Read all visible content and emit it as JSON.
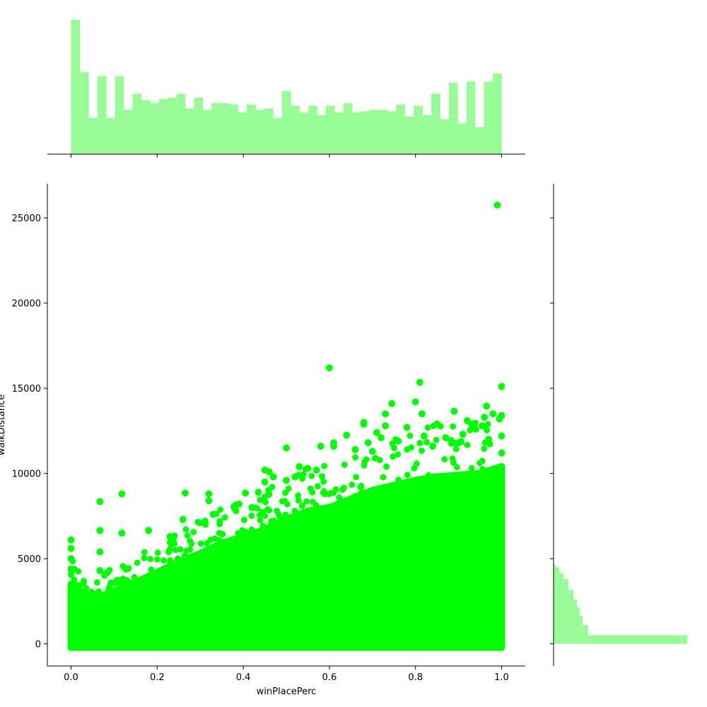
{
  "chart_data": {
    "type": "scatter",
    "title": "",
    "xlabel": "winPlacePerc",
    "ylabel": "walkDistance",
    "xlim": [
      -0.055,
      1.055
    ],
    "ylim": [
      -1300,
      27000
    ],
    "x_ticks": [
      0.0,
      0.2,
      0.4,
      0.6,
      0.8,
      1.0
    ],
    "x_tick_labels": [
      "0.0",
      "0.2",
      "0.4",
      "0.6",
      "0.8",
      "1.0"
    ],
    "y_ticks": [
      0,
      5000,
      10000,
      15000,
      20000,
      25000
    ],
    "y_tick_labels": [
      "0",
      "5000",
      "10000",
      "15000",
      "20000",
      "25000"
    ],
    "point_color": "#00ff00",
    "hist_color": "#98fb98",
    "outlier_points": [
      {
        "x": 0.0,
        "y": 6100
      },
      {
        "x": 0.0,
        "y": 5600
      },
      {
        "x": 0.0,
        "y": 5000
      },
      {
        "x": 0.0,
        "y": 4400
      },
      {
        "x": 0.02,
        "y": 1400
      },
      {
        "x": 0.067,
        "y": 8350
      },
      {
        "x": 0.067,
        "y": 6650
      },
      {
        "x": 0.067,
        "y": 5400
      },
      {
        "x": 0.067,
        "y": 4300
      },
      {
        "x": 0.085,
        "y": 4200
      },
      {
        "x": 0.11,
        "y": 3700
      },
      {
        "x": 0.118,
        "y": 8800
      },
      {
        "x": 0.118,
        "y": 6500
      },
      {
        "x": 0.18,
        "y": 6650
      },
      {
        "x": 0.23,
        "y": 6300
      },
      {
        "x": 0.26,
        "y": 7300
      },
      {
        "x": 0.265,
        "y": 8850
      },
      {
        "x": 0.32,
        "y": 8800
      },
      {
        "x": 0.32,
        "y": 8400
      },
      {
        "x": 0.33,
        "y": 7600
      },
      {
        "x": 0.38,
        "y": 7950
      },
      {
        "x": 0.39,
        "y": 8200
      },
      {
        "x": 0.405,
        "y": 8850
      },
      {
        "x": 0.42,
        "y": 8000
      },
      {
        "x": 0.435,
        "y": 8900
      },
      {
        "x": 0.45,
        "y": 9500
      },
      {
        "x": 0.45,
        "y": 10200
      },
      {
        "x": 0.46,
        "y": 10100
      },
      {
        "x": 0.47,
        "y": 9800
      },
      {
        "x": 0.5,
        "y": 11500
      },
      {
        "x": 0.5,
        "y": 9600
      },
      {
        "x": 0.52,
        "y": 9800
      },
      {
        "x": 0.53,
        "y": 10400
      },
      {
        "x": 0.55,
        "y": 10300
      },
      {
        "x": 0.57,
        "y": 10200
      },
      {
        "x": 0.58,
        "y": 11600
      },
      {
        "x": 0.6,
        "y": 16200
      },
      {
        "x": 0.61,
        "y": 11800
      },
      {
        "x": 0.61,
        "y": 11600
      },
      {
        "x": 0.64,
        "y": 12250
      },
      {
        "x": 0.66,
        "y": 11400
      },
      {
        "x": 0.68,
        "y": 12900
      },
      {
        "x": 0.68,
        "y": 13000
      },
      {
        "x": 0.69,
        "y": 11800
      },
      {
        "x": 0.7,
        "y": 11300
      },
      {
        "x": 0.71,
        "y": 12400
      },
      {
        "x": 0.72,
        "y": 12100
      },
      {
        "x": 0.73,
        "y": 13500
      },
      {
        "x": 0.73,
        "y": 12800
      },
      {
        "x": 0.745,
        "y": 14100
      },
      {
        "x": 0.76,
        "y": 11900
      },
      {
        "x": 0.78,
        "y": 12700
      },
      {
        "x": 0.8,
        "y": 14200
      },
      {
        "x": 0.81,
        "y": 15350
      },
      {
        "x": 0.815,
        "y": 13500
      },
      {
        "x": 0.82,
        "y": 12200
      },
      {
        "x": 0.84,
        "y": 11600
      },
      {
        "x": 0.85,
        "y": 12900
      },
      {
        "x": 0.87,
        "y": 12100
      },
      {
        "x": 0.89,
        "y": 13650
      },
      {
        "x": 0.9,
        "y": 11800
      },
      {
        "x": 0.91,
        "y": 12300
      },
      {
        "x": 0.92,
        "y": 13100
      },
      {
        "x": 0.93,
        "y": 12900
      },
      {
        "x": 0.94,
        "y": 12600
      },
      {
        "x": 0.955,
        "y": 12800
      },
      {
        "x": 0.96,
        "y": 13300
      },
      {
        "x": 0.965,
        "y": 13950
      },
      {
        "x": 0.97,
        "y": 12000
      },
      {
        "x": 0.98,
        "y": 13500
      },
      {
        "x": 0.99,
        "y": 25750
      },
      {
        "x": 0.995,
        "y": 13200
      },
      {
        "x": 1.0,
        "y": 15100
      },
      {
        "x": 1.0,
        "y": 13400
      },
      {
        "x": 1.0,
        "y": 12200
      },
      {
        "x": 1.0,
        "y": 11200
      }
    ],
    "envelope": [
      {
        "x": 0.0,
        "y": 3500
      },
      {
        "x": 0.05,
        "y": 2600
      },
      {
        "x": 0.1,
        "y": 3100
      },
      {
        "x": 0.15,
        "y": 3600
      },
      {
        "x": 0.2,
        "y": 4200
      },
      {
        "x": 0.25,
        "y": 4800
      },
      {
        "x": 0.3,
        "y": 5300
      },
      {
        "x": 0.35,
        "y": 5900
      },
      {
        "x": 0.4,
        "y": 6300
      },
      {
        "x": 0.45,
        "y": 6700
      },
      {
        "x": 0.5,
        "y": 7300
      },
      {
        "x": 0.55,
        "y": 7800
      },
      {
        "x": 0.6,
        "y": 8000
      },
      {
        "x": 0.65,
        "y": 8500
      },
      {
        "x": 0.7,
        "y": 9000
      },
      {
        "x": 0.75,
        "y": 9300
      },
      {
        "x": 0.8,
        "y": 9600
      },
      {
        "x": 0.85,
        "y": 9800
      },
      {
        "x": 0.9,
        "y": 9900
      },
      {
        "x": 0.95,
        "y": 10000
      },
      {
        "x": 1.0,
        "y": 10400
      }
    ],
    "x_marginal_hist": {
      "bin_edges_range": [
        0.0,
        1.0
      ],
      "counts": [
        100,
        61,
        27,
        58,
        27,
        58,
        33,
        45,
        40,
        38,
        41,
        42,
        45,
        34,
        42,
        33,
        38,
        38,
        37,
        31,
        37,
        33,
        34,
        27,
        47,
        36,
        31,
        36,
        29,
        36,
        31,
        38,
        31,
        32,
        33,
        33,
        32,
        37,
        28,
        36,
        29,
        45,
        26,
        53,
        23,
        54,
        20,
        54,
        60,
        0
      ]
    },
    "y_marginal_hist": {
      "bins": [
        {
          "y0": 4500,
          "y1": 4650,
          "count": 3
        },
        {
          "y0": 4150,
          "y1": 4500,
          "count": 8
        },
        {
          "y0": 3800,
          "y1": 4150,
          "count": 14
        },
        {
          "y0": 3150,
          "y1": 3800,
          "count": 21
        },
        {
          "y0": 2600,
          "y1": 3150,
          "count": 28
        },
        {
          "y0": 2150,
          "y1": 2600,
          "count": 33
        },
        {
          "y0": 1650,
          "y1": 2150,
          "count": 37
        },
        {
          "y0": 1100,
          "y1": 1650,
          "count": 41
        },
        {
          "y0": 500,
          "y1": 1100,
          "count": 49
        },
        {
          "y0": 0,
          "y1": 500,
          "count": 189
        }
      ]
    }
  }
}
